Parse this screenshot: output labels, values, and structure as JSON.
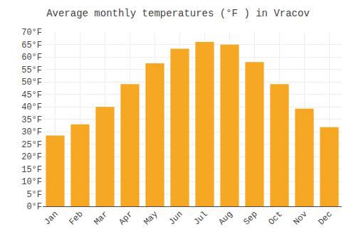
{
  "chart_data": {
    "type": "bar",
    "title": "Average monthly temperatures (°F ) in Vracov",
    "categories": [
      "Jan",
      "Feb",
      "Mar",
      "Apr",
      "May",
      "Jun",
      "Jul",
      "Aug",
      "Sep",
      "Oct",
      "Nov",
      "Dec"
    ],
    "values": [
      28.4,
      32.9,
      39.9,
      49.1,
      57.4,
      63.3,
      66.0,
      64.9,
      57.9,
      49.1,
      39.2,
      31.8
    ],
    "color": "#F5A623",
    "ylim": [
      0,
      70
    ],
    "yticks": [
      {
        "value": 0,
        "label": "0°F"
      },
      {
        "value": 5,
        "label": "5°F"
      },
      {
        "value": 10,
        "label": "10°F"
      },
      {
        "value": 15,
        "label": "15°F"
      },
      {
        "value": 20,
        "label": "20°F"
      },
      {
        "value": 25,
        "label": "25°F"
      },
      {
        "value": 30,
        "label": "30°F"
      },
      {
        "value": 35,
        "label": "35°F"
      },
      {
        "value": 40,
        "label": "40°F"
      },
      {
        "value": 45,
        "label": "45°F"
      },
      {
        "value": 50,
        "label": "50°F"
      },
      {
        "value": 55,
        "label": "55°F"
      },
      {
        "value": 60,
        "label": "60°F"
      },
      {
        "value": 65,
        "label": "65°F"
      },
      {
        "value": 70,
        "label": "70°F"
      }
    ],
    "grid": true
  }
}
